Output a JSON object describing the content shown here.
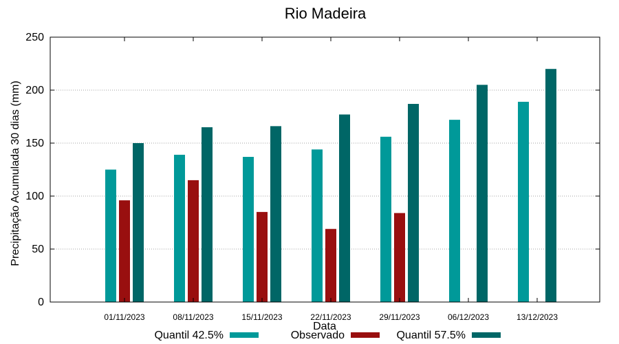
{
  "chart_data": {
    "type": "bar",
    "title": "Rio Madeira",
    "xlabel": "Data",
    "ylabel": "Precipitação Acumulada 30 dias (mm)",
    "ylim": [
      0,
      250
    ],
    "yticks": [
      0,
      50,
      100,
      150,
      200,
      250
    ],
    "grid": true,
    "legend_position": "bottom",
    "categories": [
      "01/11/2023",
      "08/11/2023",
      "15/11/2023",
      "22/11/2023",
      "29/11/2023",
      "06/12/2023",
      "13/12/2023"
    ],
    "series": [
      {
        "name": "Quantil 42.5%",
        "color": "#009999",
        "values": [
          125,
          139,
          137,
          144,
          156,
          172,
          189
        ]
      },
      {
        "name": "Observado",
        "color": "#990f0f",
        "values": [
          96,
          115,
          85,
          69,
          84,
          null,
          null
        ]
      },
      {
        "name": "Quantil 57.5%",
        "color": "#006666",
        "values": [
          150,
          165,
          166,
          177,
          187,
          205,
          220
        ]
      }
    ]
  }
}
